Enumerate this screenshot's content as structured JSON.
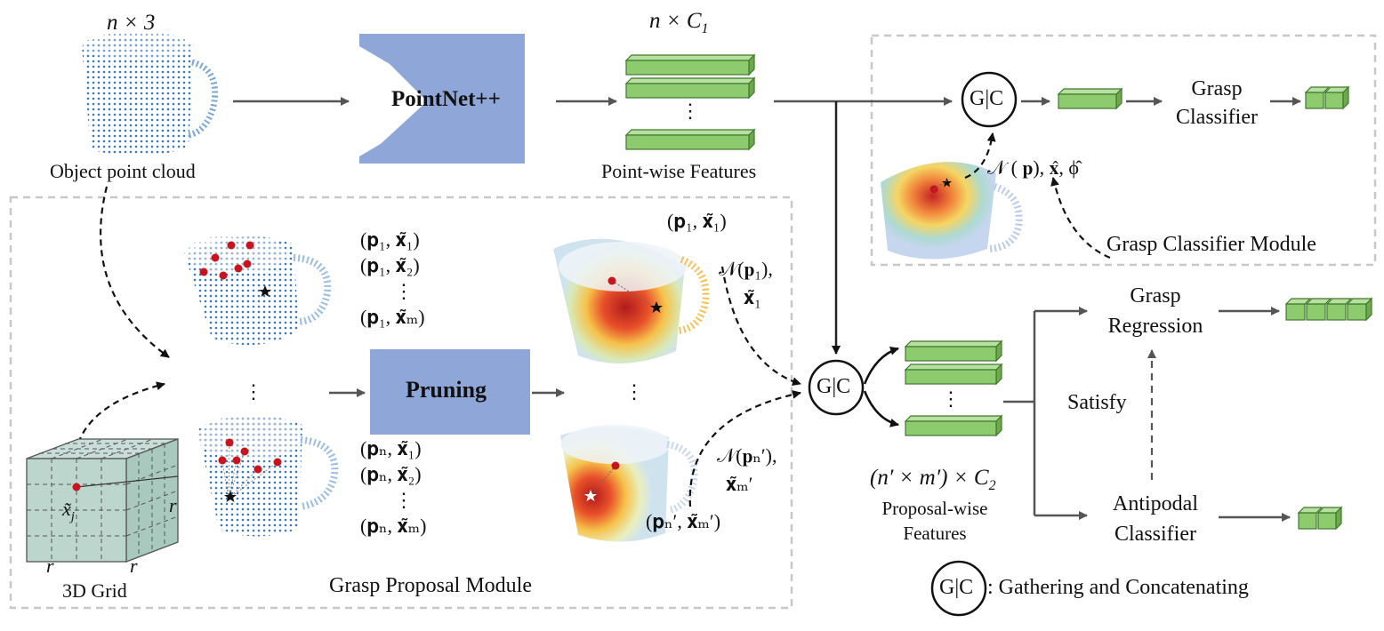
{
  "colors": {
    "block_fill": "#8fa6d8",
    "feature_fill": "#8ecb6f",
    "feature_stroke": "#3f7a2a",
    "arrow": "#555555",
    "dashed_box": "#c8c8c8",
    "point_blue": "#3a78b8",
    "point_red": "#c8141e"
  },
  "input": {
    "shape_label": "n × 3",
    "caption": "Object point cloud"
  },
  "backbone": {
    "label": "PointNet++"
  },
  "pointwise": {
    "shape_label": "n × C",
    "shape_sub": "1",
    "caption": "Point-wise Features",
    "vdots": "⋮"
  },
  "classifier_module": {
    "title": "Grasp Classifier Module",
    "gc_label": "G|C",
    "classifier_label_1": "Grasp",
    "classifier_label_2": "Classifier",
    "neighborhood_label": "𝒩 ( 𝐩), 𝐱̂, ϕ̂"
  },
  "proposal_module": {
    "title": "Grasp Proposal Module",
    "grid_label": "3D Grid",
    "grid_point_label": "x̃",
    "grid_point_sub": "j",
    "grid_side_r": "r",
    "pruning_label": "Pruning",
    "pairs_top": [
      "(𝐩",
      "(𝐩",
      "(𝐩"
    ],
    "pairs_top_text": [
      "(𝐩₁, 𝐱̃₁)",
      "(𝐩₁, 𝐱̃₂)",
      "⋮",
      "(𝐩₁, 𝐱̃ₘ)"
    ],
    "pairs_bottom_text": [
      "(𝐩ₙ, 𝐱̃₁)",
      "(𝐩ₙ, 𝐱̃₂)",
      "⋮",
      "(𝐩ₙ, 𝐱̃ₘ)"
    ],
    "pruned_top_label": "(𝐩₁, 𝐱̃₁)",
    "pruned_bottom_label": "(𝐩ₙ′, 𝐱̃ₘ′)",
    "neigh_top_1": "𝒩(𝐩₁),",
    "neigh_top_2": "𝐱̃₁",
    "neigh_bottom_1": "𝒩(𝐩ₙ′),",
    "neigh_bottom_2": "𝐱̃ₘ′",
    "vdots": "⋮"
  },
  "proposal_features": {
    "gc_label": "G|C",
    "shape_label": "(n′ × m′) × C",
    "shape_sub": "2",
    "caption_1": "Proposal-wise",
    "caption_2": "Features",
    "vdots": "⋮"
  },
  "heads": {
    "regression_1": "Grasp",
    "regression_2": "Regression",
    "satisfy": "Satisfy",
    "antipodal_1": "Antipodal",
    "antipodal_2": "Classifier"
  },
  "legend": {
    "gc_label": "G|C",
    "text": ": Gathering and Concatenating"
  }
}
